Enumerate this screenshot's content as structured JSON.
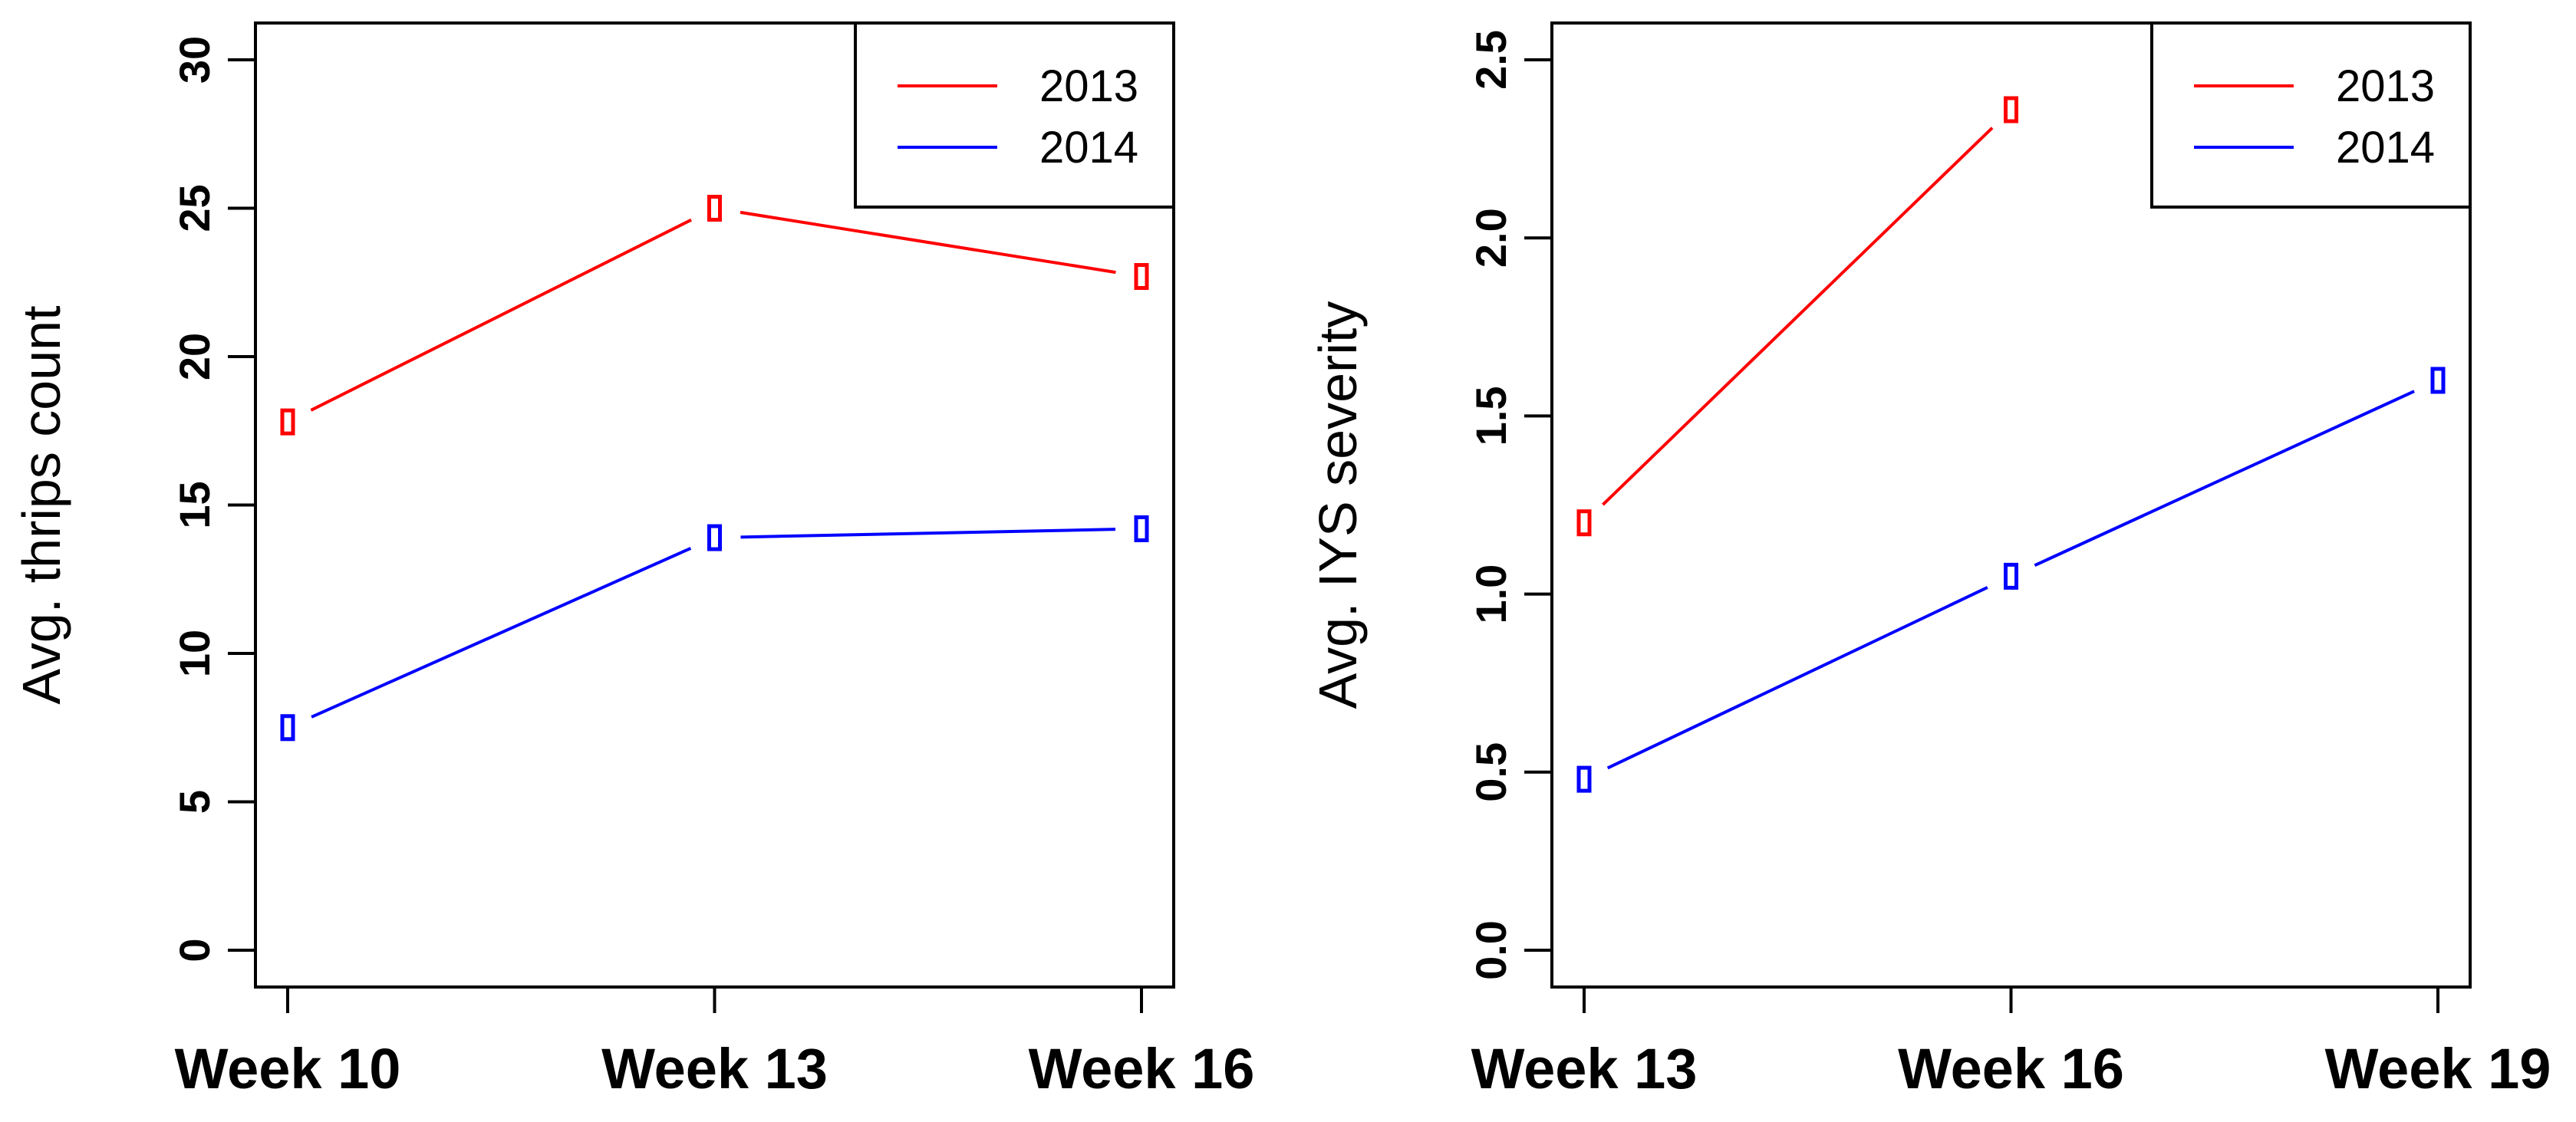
{
  "chart_data": [
    {
      "type": "line",
      "title": "",
      "xlabel": "",
      "ylabel": "Avg. thrips count",
      "categories": [
        "Week 10",
        "Week 13",
        "Week 16"
      ],
      "ylim": [
        0,
        30
      ],
      "yticks": [
        0,
        5,
        10,
        15,
        20,
        25,
        30
      ],
      "yticklabels": [
        "0",
        "5",
        "10",
        "15",
        "20",
        "25",
        "30"
      ],
      "legend_position": "top-right",
      "series": [
        {
          "name": "2013",
          "color": "#ff0000",
          "values": [
            17.8,
            25.0,
            22.7
          ]
        },
        {
          "name": "2014",
          "color": "#0000ff",
          "values": [
            7.5,
            13.9,
            14.2
          ]
        }
      ]
    },
    {
      "type": "line",
      "title": "",
      "xlabel": "",
      "ylabel": "Avg. IYS severity",
      "categories": [
        "Week 13",
        "Week 16",
        "Week 19"
      ],
      "ylim": [
        0,
        2.5
      ],
      "yticks": [
        0,
        0.5,
        1,
        1.5,
        2,
        2.5
      ],
      "yticklabels": [
        "0.0",
        "0.5",
        "1.0",
        "1.5",
        "2.0",
        "2.5"
      ],
      "legend_position": "top-right",
      "series": [
        {
          "name": "2013",
          "color": "#ff0000",
          "values": [
            1.2,
            2.36,
            null
          ]
        },
        {
          "name": "2014",
          "color": "#0000ff",
          "values": [
            0.48,
            1.05,
            1.6
          ]
        }
      ]
    }
  ]
}
